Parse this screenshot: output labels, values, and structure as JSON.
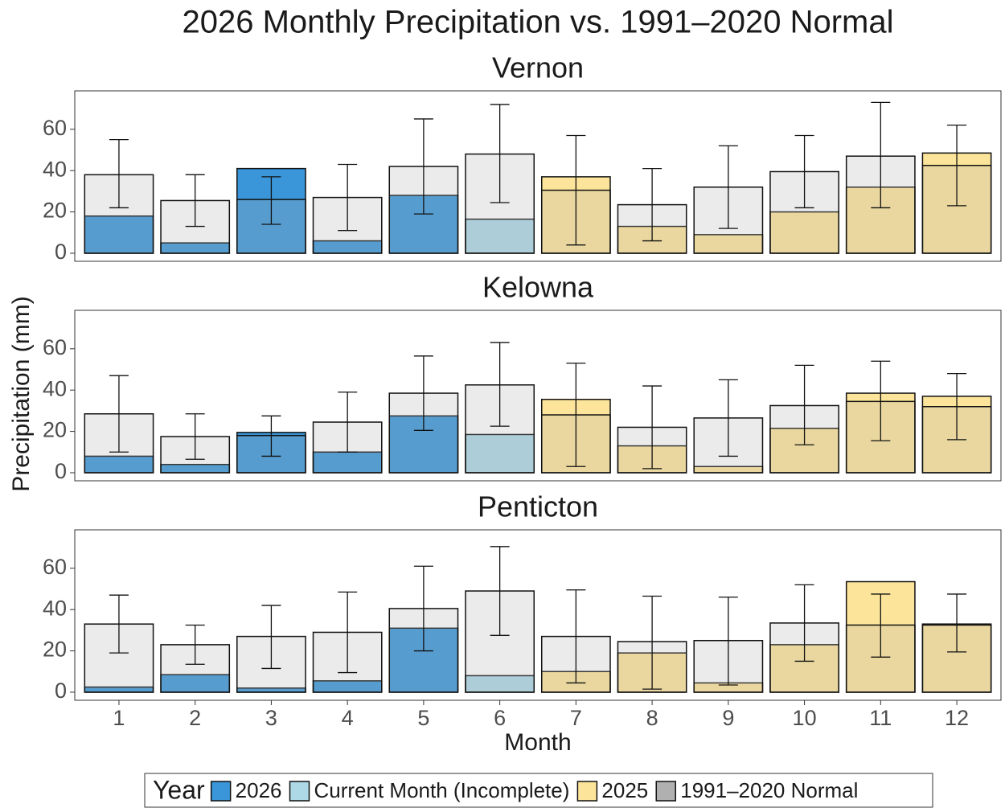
{
  "chart_data": {
    "type": "bar",
    "title": "2026  Monthly Precipitation vs. 1991–2020 Normal",
    "x_label": "Month",
    "y_label": "Precipitation (mm)",
    "legend_title": "Year",
    "categories": [
      "1",
      "2",
      "3",
      "4",
      "5",
      "6",
      "7",
      "8",
      "9",
      "10",
      "11",
      "12"
    ],
    "series": [
      {
        "name": "2026",
        "color": "#3a96d8"
      },
      {
        "name": "Current Month (Incomplete)",
        "color": "#add8e6"
      },
      {
        "name": "2025",
        "color": "#fce59a"
      },
      {
        "name": "1991–2020 Normal",
        "color": "#b0b0b0",
        "opacity": 0.25
      }
    ],
    "ylim": [
      -3.9,
      78.6
    ],
    "yticks": [
      0,
      20,
      40,
      60
    ],
    "panels": [
      {
        "title": "Vernon",
        "values": [
          [
            18,
            5,
            41,
            6,
            28,
            null,
            null,
            null,
            null,
            null,
            null,
            null
          ],
          [
            null,
            null,
            null,
            null,
            null,
            16.5,
            null,
            null,
            null,
            null,
            null,
            null
          ],
          [
            null,
            null,
            null,
            null,
            null,
            null,
            37,
            13,
            9,
            20,
            32,
            48.5
          ],
          [
            38,
            25.5,
            26,
            27,
            42,
            48,
            30.5,
            23.5,
            32,
            39.5,
            47,
            42.5
          ]
        ],
        "normal_range": [
          [
            22,
            55
          ],
          [
            13,
            38
          ],
          [
            14,
            37
          ],
          [
            11,
            43
          ],
          [
            19,
            65
          ],
          [
            24.5,
            72
          ],
          [
            4,
            57
          ],
          [
            6,
            41
          ],
          [
            12,
            52
          ],
          [
            22,
            57
          ],
          [
            22,
            73
          ],
          [
            23,
            62
          ]
        ]
      },
      {
        "title": "Kelowna",
        "values": [
          [
            8,
            4,
            19.5,
            10,
            27.5,
            null,
            null,
            null,
            null,
            null,
            null,
            null
          ],
          [
            null,
            null,
            null,
            null,
            null,
            18.5,
            null,
            null,
            null,
            null,
            null,
            null
          ],
          [
            null,
            null,
            null,
            null,
            null,
            null,
            35.5,
            13,
            3,
            21.5,
            38.5,
            37
          ],
          [
            28.5,
            17.5,
            18,
            24.5,
            38.5,
            42.5,
            28,
            22,
            26.5,
            32.5,
            34.5,
            32
          ]
        ],
        "normal_range": [
          [
            10,
            47
          ],
          [
            6.5,
            28.5
          ],
          [
            8,
            27.5
          ],
          [
            10,
            39
          ],
          [
            20.5,
            56.5
          ],
          [
            22.5,
            63
          ],
          [
            3,
            53
          ],
          [
            2,
            42
          ],
          [
            8,
            45
          ],
          [
            13.5,
            52
          ],
          [
            15.5,
            54
          ],
          [
            16,
            48
          ]
        ]
      },
      {
        "title": "Penticton",
        "values": [
          [
            2.5,
            8.5,
            2,
            5.5,
            31,
            null,
            null,
            null,
            null,
            null,
            null,
            null
          ],
          [
            null,
            null,
            null,
            null,
            null,
            8,
            null,
            null,
            null,
            null,
            null,
            null
          ],
          [
            null,
            null,
            null,
            null,
            null,
            null,
            10,
            19,
            4.5,
            23,
            53.5,
            33
          ],
          [
            33,
            23,
            27,
            29,
            40.5,
            49,
            27,
            24.5,
            25,
            33.5,
            32.5,
            32.5
          ]
        ],
        "normal_range": [
          [
            19,
            47
          ],
          [
            13.5,
            32.5
          ],
          [
            11.5,
            42
          ],
          [
            9.5,
            48.5
          ],
          [
            20,
            61
          ],
          [
            27.5,
            70.5
          ],
          [
            4.5,
            49.5
          ],
          [
            1.5,
            46.5
          ],
          [
            3.5,
            46
          ],
          [
            15,
            52
          ],
          [
            17,
            47.5
          ],
          [
            19.5,
            47.5
          ]
        ]
      }
    ]
  }
}
